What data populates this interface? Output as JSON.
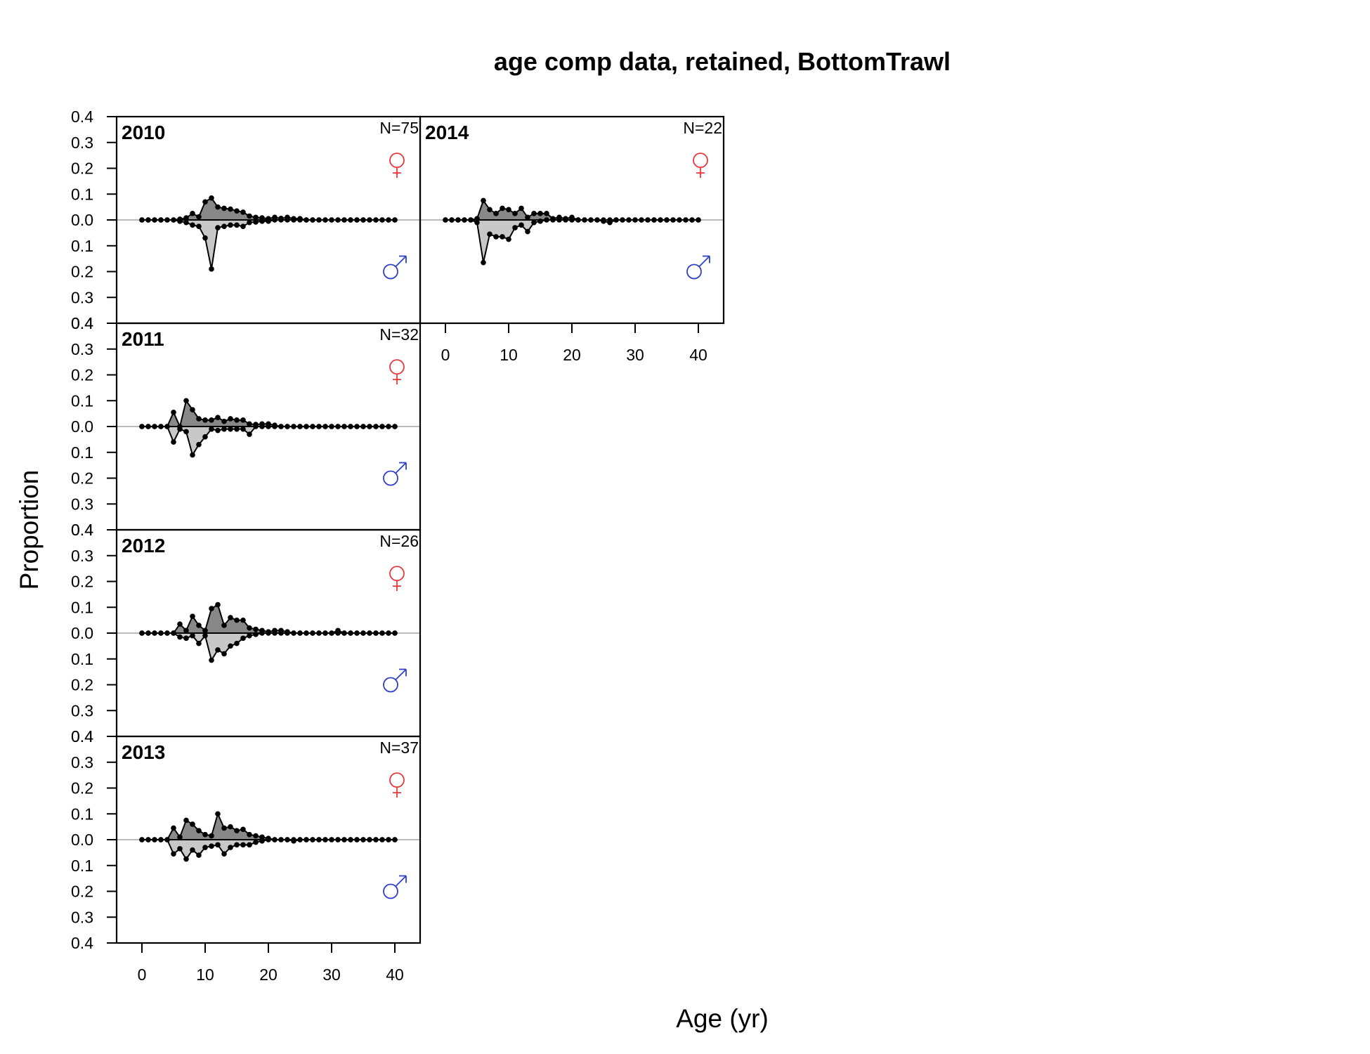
{
  "chart_data": {
    "type": "area",
    "title": "age comp data, retained, BottomTrawl",
    "xlabel": "Age (yr)",
    "ylabel": "Proportion",
    "xlim": [
      -4,
      44
    ],
    "ylim": [
      -0.4,
      0.4
    ],
    "x_ticks": [
      0,
      10,
      20,
      30,
      40
    ],
    "y_tick_labels": [
      "0.4",
      "0.3",
      "0.2",
      "0.1",
      "0.0",
      "0.1",
      "0.2",
      "0.3",
      "0.4"
    ],
    "ages": [
      0,
      1,
      2,
      3,
      4,
      5,
      6,
      7,
      8,
      9,
      10,
      11,
      12,
      13,
      14,
      15,
      16,
      17,
      18,
      19,
      20,
      21,
      22,
      23,
      24,
      25,
      26,
      27,
      28,
      29,
      30,
      31,
      32,
      33,
      34,
      35,
      36,
      37,
      38,
      39,
      40
    ],
    "colors": {
      "female_fill": "#888888",
      "male_fill": "#c8c8c8",
      "female_symbol": "#e8383c",
      "male_symbol": "#2f3fcc",
      "zero_line": "#bbbbbb"
    },
    "panels": [
      {
        "year": "2010",
        "n": "N=75",
        "female": [
          0,
          0,
          0,
          0,
          0,
          0,
          0.003,
          0.008,
          0.025,
          0.012,
          0.07,
          0.085,
          0.05,
          0.045,
          0.042,
          0.035,
          0.03,
          0.015,
          0.01,
          0.008,
          0.005,
          0.01,
          0.006,
          0.01,
          0.005,
          0.005,
          0,
          0,
          0,
          0,
          0,
          0,
          0,
          0,
          0,
          0,
          0,
          0,
          0,
          0,
          0
        ],
        "male": [
          0,
          0,
          0,
          0,
          0,
          0,
          -0.005,
          -0.01,
          -0.02,
          -0.025,
          -0.07,
          -0.19,
          -0.03,
          -0.025,
          -0.02,
          -0.02,
          -0.025,
          -0.01,
          -0.008,
          -0.005,
          -0.005,
          0,
          0,
          0,
          0,
          0,
          0,
          0,
          0,
          0,
          0,
          0,
          0,
          0,
          0,
          0,
          0,
          0,
          0,
          0,
          0
        ]
      },
      {
        "year": "2011",
        "n": "N=32",
        "female": [
          0,
          0,
          0,
          0,
          0,
          0.055,
          0,
          0.1,
          0.065,
          0.03,
          0.025,
          0.025,
          0.035,
          0.02,
          0.03,
          0.025,
          0.025,
          0.01,
          0.008,
          0.01,
          0.01,
          0.005,
          0,
          0,
          0,
          0,
          0,
          0,
          0,
          0,
          0,
          0,
          0,
          0,
          0,
          0,
          0,
          0,
          0,
          0,
          0
        ],
        "male": [
          0,
          0,
          0,
          0,
          0,
          -0.06,
          -0.01,
          -0.02,
          -0.11,
          -0.07,
          -0.04,
          -0.01,
          -0.015,
          -0.01,
          -0.01,
          -0.01,
          -0.01,
          -0.03,
          0,
          0,
          0,
          0,
          0,
          0,
          0,
          0,
          0,
          0,
          0,
          0,
          0,
          0,
          0,
          0,
          0,
          0,
          0,
          0,
          0,
          0,
          0
        ]
      },
      {
        "year": "2012",
        "n": "N=26",
        "female": [
          0,
          0,
          0,
          0,
          0,
          0,
          0.035,
          0.01,
          0.065,
          0.03,
          0.01,
          0.095,
          0.11,
          0.03,
          0.06,
          0.05,
          0.05,
          0.02,
          0.015,
          0.01,
          0.005,
          0.01,
          0.01,
          0.005,
          0,
          0,
          0,
          0,
          0,
          0,
          0,
          0.01,
          0,
          0,
          0,
          0,
          0,
          0,
          0,
          0,
          0
        ],
        "male": [
          0,
          0,
          0,
          0,
          0,
          0,
          -0.015,
          -0.02,
          -0.01,
          -0.04,
          -0.01,
          -0.105,
          -0.065,
          -0.08,
          -0.05,
          -0.04,
          -0.02,
          -0.01,
          -0.005,
          0,
          0,
          0,
          0,
          0,
          0,
          0,
          0,
          0,
          0,
          0,
          0,
          0,
          0,
          0,
          0,
          0,
          0,
          0,
          0,
          0,
          0
        ]
      },
      {
        "year": "2013",
        "n": "N=37",
        "female": [
          0,
          0,
          0,
          0,
          0,
          0.045,
          0.01,
          0.075,
          0.06,
          0.035,
          0.02,
          0.015,
          0.1,
          0.045,
          0.05,
          0.035,
          0.04,
          0.02,
          0.015,
          0.01,
          0.005,
          0,
          0,
          0,
          0,
          0,
          0,
          0,
          0,
          0,
          0,
          0,
          0,
          0,
          0,
          0,
          0,
          0,
          0,
          0,
          0
        ],
        "male": [
          0,
          0,
          0,
          0,
          0,
          -0.055,
          -0.035,
          -0.075,
          -0.04,
          -0.06,
          -0.03,
          -0.025,
          -0.02,
          -0.055,
          -0.03,
          -0.02,
          -0.02,
          -0.02,
          -0.01,
          -0.005,
          0,
          0,
          0,
          0,
          -0.005,
          0,
          0,
          0,
          0,
          0,
          0,
          0,
          0,
          0,
          0,
          0,
          0,
          0,
          0,
          0,
          0
        ]
      },
      {
        "year": "2014",
        "n": "N=22",
        "female": [
          0,
          0,
          0,
          0,
          0,
          0.005,
          0.075,
          0.04,
          0.025,
          0.045,
          0.04,
          0.025,
          0.045,
          0.01,
          0.025,
          0.025,
          0.025,
          0.005,
          0.01,
          0.005,
          0.01,
          0,
          0,
          0,
          0,
          0,
          0,
          0,
          0,
          0,
          0,
          0,
          0,
          0,
          0,
          0,
          0,
          0,
          0,
          0,
          0
        ],
        "male": [
          0,
          0,
          0,
          0,
          0,
          -0.01,
          -0.165,
          -0.055,
          -0.065,
          -0.065,
          -0.075,
          -0.03,
          -0.02,
          -0.045,
          -0.01,
          -0.005,
          0,
          0,
          0,
          0,
          0,
          0,
          0,
          0,
          0,
          -0.005,
          -0.01,
          0,
          0,
          0,
          0,
          0,
          0,
          0,
          0,
          0,
          0,
          0,
          0,
          0,
          0
        ]
      }
    ]
  }
}
